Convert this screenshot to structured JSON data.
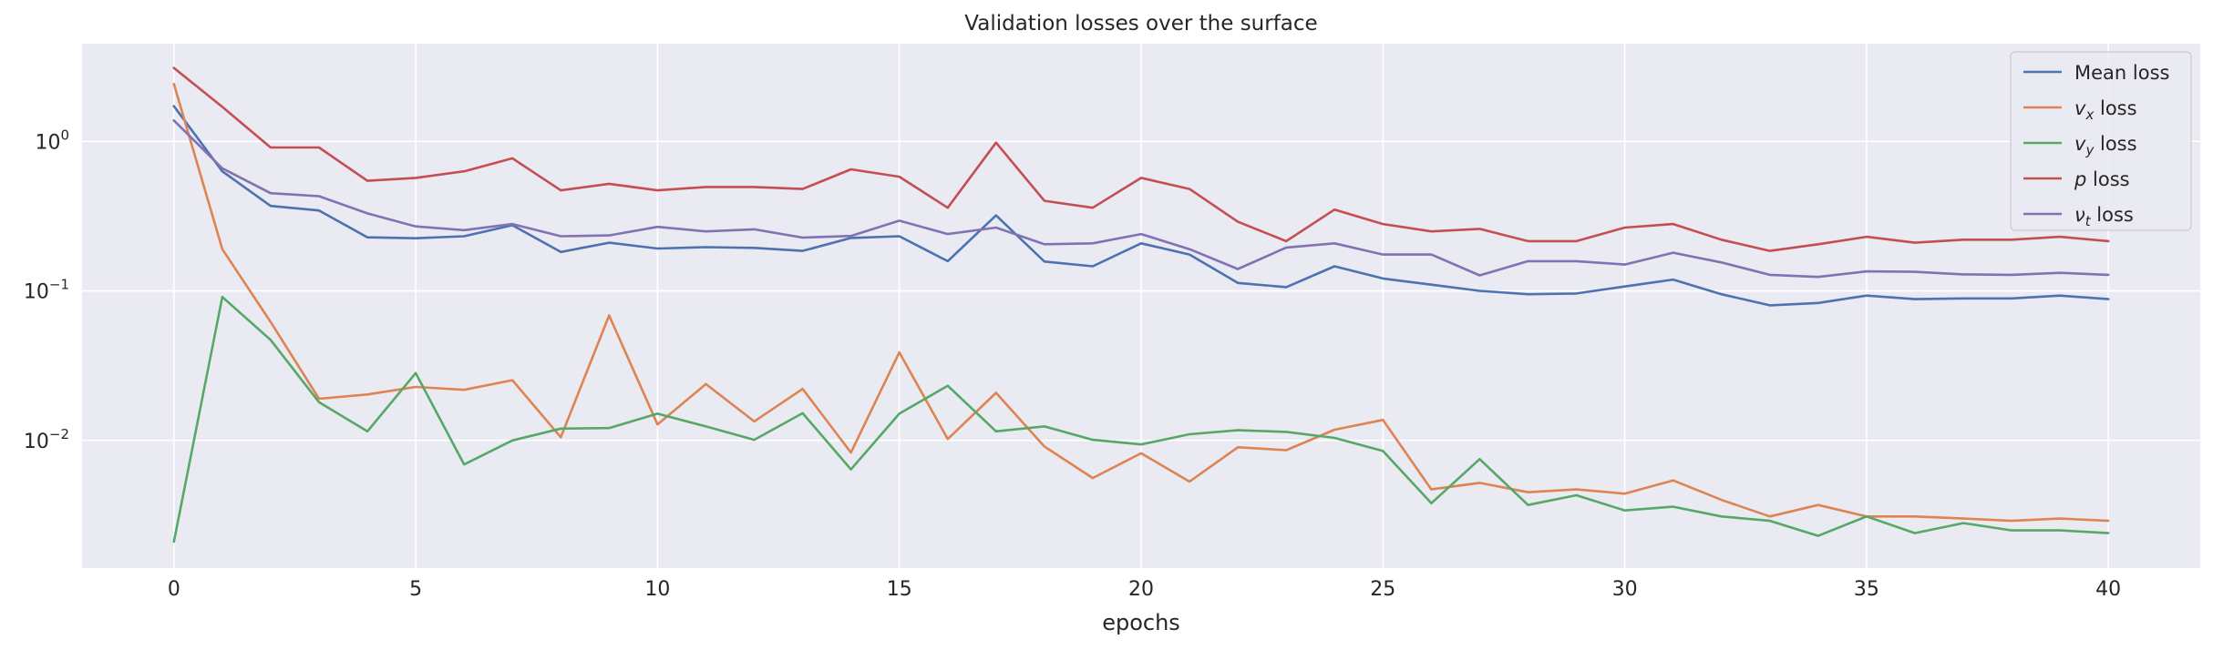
{
  "chart_data": {
    "type": "line",
    "title": "Validation losses over the surface",
    "xlabel": "epochs",
    "ylabel": "",
    "yscale": "log",
    "xlim": [
      -1.9,
      41.9
    ],
    "ylim": [
      0.0014,
      4.5
    ],
    "grid": true,
    "legend_position": "top-right",
    "x_ticks": [
      0,
      5,
      10,
      15,
      20,
      25,
      30,
      35,
      40
    ],
    "y_ticks": [
      {
        "value": 1,
        "base": "10",
        "exp": "0"
      },
      {
        "value": 0.1,
        "base": "10",
        "exp": "−1"
      },
      {
        "value": 0.01,
        "base": "10",
        "exp": "−2"
      }
    ],
    "x": [
      0,
      1,
      2,
      3,
      4,
      5,
      6,
      7,
      8,
      9,
      10,
      11,
      12,
      13,
      14,
      15,
      16,
      17,
      18,
      19,
      20,
      21,
      22,
      23,
      24,
      25,
      26,
      27,
      28,
      29,
      30,
      31,
      32,
      33,
      34,
      35,
      36,
      37,
      38,
      39,
      40
    ],
    "series": [
      {
        "label": {
          "symbol": "",
          "sub": "",
          "suffix": "Mean loss"
        },
        "color": "#4c72b0",
        "values": [
          1.72,
          0.63,
          0.37,
          0.345,
          0.228,
          0.225,
          0.232,
          0.275,
          0.182,
          0.21,
          0.192,
          0.196,
          0.194,
          0.185,
          0.226,
          0.232,
          0.158,
          0.32,
          0.157,
          0.146,
          0.208,
          0.175,
          0.113,
          0.106,
          0.146,
          0.121,
          0.11,
          0.1,
          0.095,
          0.096,
          0.107,
          0.119,
          0.095,
          0.08,
          0.083,
          0.093,
          0.088,
          0.089,
          0.089,
          0.093,
          0.088
        ]
      },
      {
        "label": {
          "symbol": "v",
          "sub": "x",
          "suffix": " loss"
        },
        "color": "#dd8452",
        "values": [
          2.42,
          0.19,
          0.062,
          0.019,
          0.0203,
          0.0228,
          0.0218,
          0.0253,
          0.0105,
          0.0685,
          0.0128,
          0.0238,
          0.0134,
          0.0221,
          0.0083,
          0.0388,
          0.0102,
          0.0208,
          0.0091,
          0.0056,
          0.0082,
          0.0053,
          0.009,
          0.0086,
          0.0118,
          0.0137,
          0.0047,
          0.0052,
          0.0045,
          0.0047,
          0.0044,
          0.0054,
          0.004,
          0.0031,
          0.0037,
          0.0031,
          0.0031,
          0.003,
          0.0029,
          0.003,
          0.0029
        ]
      },
      {
        "label": {
          "symbol": "v",
          "sub": "y",
          "suffix": " loss"
        },
        "color": "#55a868",
        "values": [
          0.0021,
          0.091,
          0.047,
          0.018,
          0.0115,
          0.0282,
          0.0069,
          0.01,
          0.012,
          0.0121,
          0.0151,
          0.0124,
          0.0101,
          0.0152,
          0.0064,
          0.0151,
          0.0232,
          0.0115,
          0.0124,
          0.0101,
          0.0094,
          0.011,
          0.0117,
          0.0114,
          0.0104,
          0.0085,
          0.0038,
          0.0075,
          0.0037,
          0.0043,
          0.0034,
          0.0036,
          0.0031,
          0.0029,
          0.0023,
          0.0031,
          0.0024,
          0.0028,
          0.0025,
          0.0025,
          0.0024
        ]
      },
      {
        "label": {
          "symbol": "p",
          "sub": "",
          "suffix": " loss"
        },
        "color": "#c44e52",
        "values": [
          3.1,
          1.7,
          0.91,
          0.91,
          0.545,
          0.57,
          0.63,
          0.77,
          0.47,
          0.52,
          0.47,
          0.495,
          0.495,
          0.48,
          0.65,
          0.58,
          0.36,
          0.98,
          0.4,
          0.36,
          0.57,
          0.48,
          0.29,
          0.215,
          0.35,
          0.28,
          0.25,
          0.26,
          0.215,
          0.215,
          0.265,
          0.28,
          0.22,
          0.185,
          0.205,
          0.23,
          0.21,
          0.22,
          0.22,
          0.23,
          0.215
        ]
      },
      {
        "label": {
          "symbol": "ν",
          "sub": "t",
          "suffix": " loss"
        },
        "color": "#8172b3",
        "values": [
          1.38,
          0.66,
          0.45,
          0.43,
          0.33,
          0.27,
          0.255,
          0.28,
          0.232,
          0.235,
          0.268,
          0.25,
          0.258,
          0.227,
          0.233,
          0.295,
          0.24,
          0.265,
          0.205,
          0.208,
          0.24,
          0.19,
          0.14,
          0.195,
          0.208,
          0.175,
          0.175,
          0.127,
          0.158,
          0.158,
          0.15,
          0.18,
          0.155,
          0.128,
          0.124,
          0.135,
          0.134,
          0.129,
          0.128,
          0.132,
          0.128
        ]
      }
    ]
  }
}
